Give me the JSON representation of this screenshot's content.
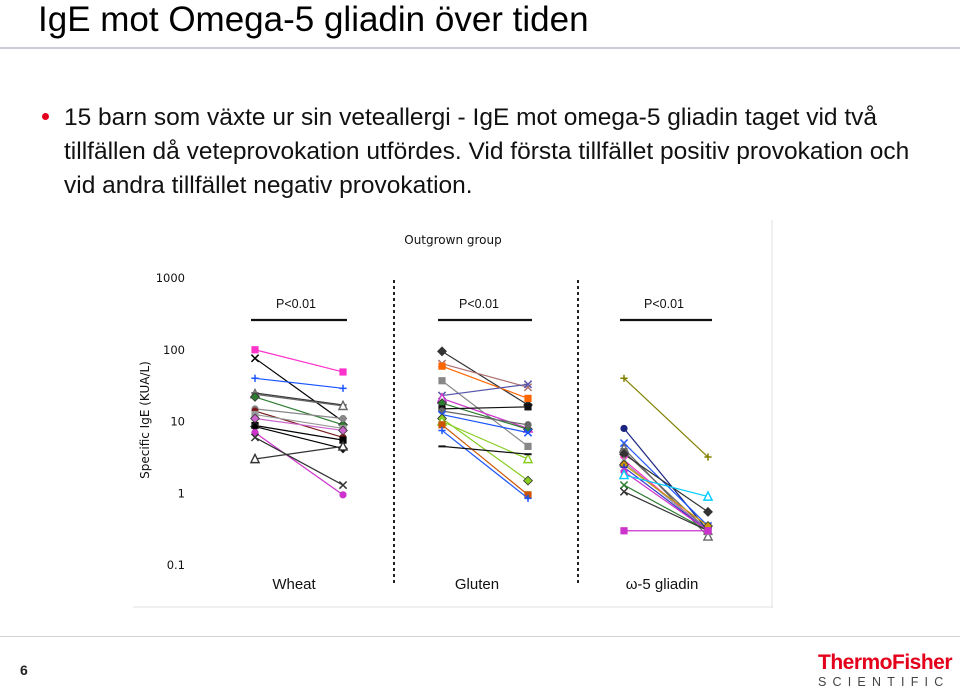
{
  "slide": {
    "title": "IgE mot Omega-5 gliadin över tiden",
    "bullet": "15 barn som växte ur sin veteallergi -  IgE mot omega-5 gliadin taget vid två tillfällen då veteprovokation utfördes. Vid första tillfället positiv provokation och vid andra tillfället negativ provokation.",
    "page_number": "6",
    "logo": {
      "top": "ThermoFisher",
      "bottom": "SCIENTIFIC"
    },
    "colors": {
      "bullet": "#e3001b",
      "logo_red": "#e4001b"
    }
  },
  "chart_data": {
    "type": "line",
    "title": "Outgrown group",
    "ylabel": "Specific IgE (KUA/L)",
    "yscale": "log",
    "ylim": [
      0.1,
      1000
    ],
    "yticks": [
      "1000",
      "100",
      "10",
      "1",
      "0.1"
    ],
    "grid": false,
    "groups": [
      {
        "name": "Wheat",
        "pvalue": "P<0.01",
        "series": [
          {
            "marker": "square",
            "color": "#ff33cc",
            "values": [
              100,
              49
            ]
          },
          {
            "marker": "x",
            "color": "#000000",
            "values": [
              76,
              10
            ]
          },
          {
            "marker": "plus",
            "color": "#1a55ff",
            "values": [
              40,
              29
            ]
          },
          {
            "marker": "plus",
            "color": "#333333",
            "values": [
              25,
              17
            ]
          },
          {
            "marker": "triangle",
            "color": "#666666",
            "values": [
              24,
              16.5
            ]
          },
          {
            "marker": "diamond",
            "color": "#2e7d32",
            "values": [
              22,
              9
            ]
          },
          {
            "marker": "circle",
            "color": "#888888",
            "values": [
              15,
              11
            ]
          },
          {
            "marker": "circle",
            "color": "#7a1c1c",
            "values": [
              14,
              6
            ]
          },
          {
            "marker": "square",
            "color": "#999999",
            "values": [
              12.5,
              8
            ]
          },
          {
            "marker": "diamond",
            "color": "#cc66cc",
            "values": [
              11,
              7.5
            ]
          },
          {
            "marker": "square",
            "color": "#000000",
            "values": [
              8.8,
              5.5
            ]
          },
          {
            "marker": "diamond",
            "color": "#000000",
            "values": [
              8.5,
              4.2
            ]
          },
          {
            "marker": "circle",
            "color": "#cc33cc",
            "values": [
              7,
              0.95
            ]
          },
          {
            "marker": "x",
            "color": "#333333",
            "values": [
              6,
              1.3
            ]
          },
          {
            "marker": "triangle",
            "color": "#333333",
            "values": [
              3,
              4.5
            ]
          }
        ]
      },
      {
        "name": "Gluten",
        "pvalue": "P<0.01",
        "series": [
          {
            "marker": "diamond",
            "color": "#333333",
            "values": [
              95,
              17
            ]
          },
          {
            "marker": "x",
            "color": "#b07070",
            "values": [
              64,
              30
            ]
          },
          {
            "marker": "square",
            "color": "#ff6600",
            "values": [
              59,
              21
            ]
          },
          {
            "marker": "square",
            "color": "#888888",
            "values": [
              37,
              4.5
            ]
          },
          {
            "marker": "x",
            "color": "#5555aa",
            "values": [
              23,
              33
            ]
          },
          {
            "marker": "triangle",
            "color": "#cc33cc",
            "values": [
              21,
              8
            ]
          },
          {
            "marker": "diamond",
            "color": "#2e7d32",
            "values": [
              18,
              7.8
            ]
          },
          {
            "marker": "square",
            "color": "#111111",
            "values": [
              15,
              16
            ]
          },
          {
            "marker": "circle",
            "color": "#666666",
            "values": [
              14,
              9
            ]
          },
          {
            "marker": "x",
            "color": "#1a55ff",
            "values": [
              12.5,
              7
            ]
          },
          {
            "marker": "diamond",
            "color": "#88cc22",
            "values": [
              11,
              1.5
            ]
          },
          {
            "marker": "triangle",
            "color": "#88cc22",
            "values": [
              10,
              3
            ]
          },
          {
            "marker": "square",
            "color": "#cc5500",
            "values": [
              9,
              0.95
            ]
          },
          {
            "marker": "plus",
            "color": "#1a55ff",
            "values": [
              7.5,
              0.85
            ]
          },
          {
            "marker": "dash",
            "color": "#111111",
            "values": [
              4.5,
              3.5
            ]
          }
        ]
      },
      {
        "name": "ω-5 gliadin",
        "pvalue": "P<0.01",
        "series": [
          {
            "marker": "plus",
            "color": "#808000",
            "values": [
              40,
              3.2
            ]
          },
          {
            "marker": "circle",
            "color": "#1a237e",
            "values": [
              8,
              0.3
            ]
          },
          {
            "marker": "x",
            "color": "#1a55ff",
            "values": [
              5,
              0.35
            ]
          },
          {
            "marker": "triangle",
            "color": "#666666",
            "values": [
              4.2,
              0.25
            ]
          },
          {
            "marker": "square",
            "color": "#666666",
            "values": [
              3.8,
              0.3
            ]
          },
          {
            "marker": "diamond",
            "color": "#333333",
            "values": [
              3.5,
              0.55
            ]
          },
          {
            "marker": "x",
            "color": "#ff33cc",
            "values": [
              2.9,
              0.3
            ]
          },
          {
            "marker": "triangle",
            "color": "#999999",
            "values": [
              2.7,
              0.3
            ]
          },
          {
            "marker": "diamond",
            "color": "#cc9900",
            "values": [
              2.5,
              0.35
            ]
          },
          {
            "marker": "plus",
            "color": "#3333cc",
            "values": [
              2.3,
              0.3
            ]
          },
          {
            "marker": "circle",
            "color": "#cc33cc",
            "values": [
              2,
              0.3
            ]
          },
          {
            "marker": "triangle",
            "color": "#00ccff",
            "values": [
              1.8,
              0.9
            ]
          },
          {
            "marker": "x",
            "color": "#2e7d32",
            "values": [
              1.3,
              0.3
            ]
          },
          {
            "marker": "x",
            "color": "#333333",
            "values": [
              1.05,
              0.3
            ]
          },
          {
            "marker": "square",
            "color": "#cc33cc",
            "values": [
              0.3,
              0.3
            ]
          }
        ]
      }
    ]
  }
}
